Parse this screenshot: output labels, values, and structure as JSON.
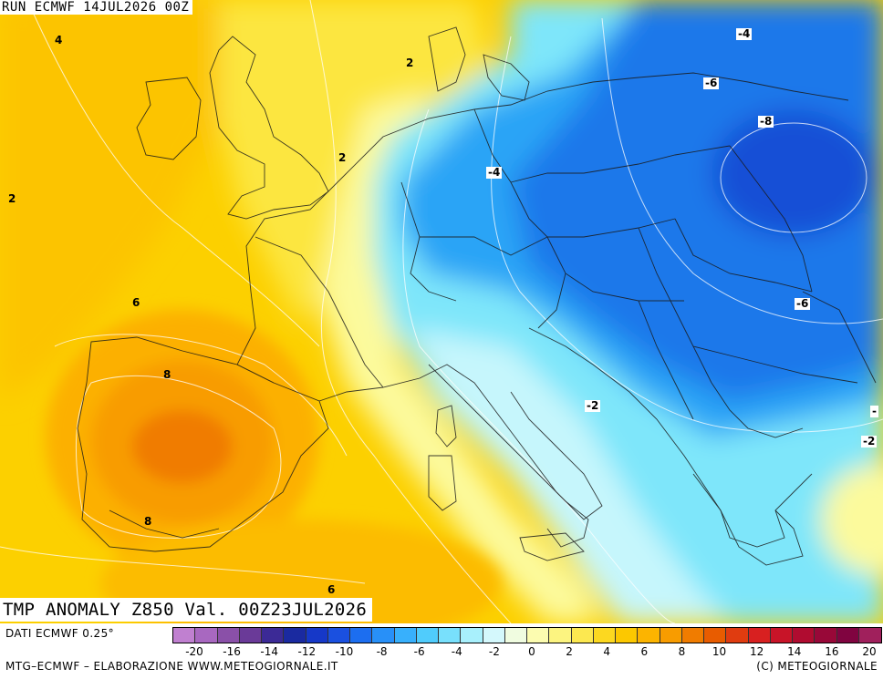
{
  "run_label": "RUN ECMWF 14JUL2026 00Z",
  "title": "TMP ANOMALY Z850 Val. 00Z23JUL2026",
  "source_label": "DATI ECMWF 0.25°",
  "credit": "MTG–ECMWF – ELABORAZIONE WWW.METEOGIORNALE.IT",
  "copyright": "(C) METEOGIORNALE",
  "contour_labels": [
    "4",
    "2",
    "2",
    "2",
    "6",
    "8",
    "8",
    "6",
    "-4",
    "-6",
    "-8",
    "-4",
    "-6",
    "-2",
    "-2",
    "-"
  ],
  "colorbar": {
    "ticks": [
      "-20",
      "-16",
      "-14",
      "-12",
      "-10",
      "-8",
      "-6",
      "-4",
      "-2",
      "0",
      "2",
      "4",
      "6",
      "8",
      "10",
      "12",
      "14",
      "16",
      "20"
    ],
    "colors": [
      "#c080d0",
      "#a868c0",
      "#8a50a8",
      "#6a3a98",
      "#3c2a96",
      "#1a2aa0",
      "#1638c8",
      "#1a50e0",
      "#1c6ef0",
      "#2890f8",
      "#38b0fc",
      "#50ccfc",
      "#78e0fc",
      "#a8f0fc",
      "#d4f8fc",
      "#f0fce0",
      "#fcfcb0",
      "#fcf480",
      "#fce850",
      "#fcd820",
      "#fcc800",
      "#fcb400",
      "#f89c00",
      "#f07c00",
      "#e85c00",
      "#e03c10",
      "#d82020",
      "#c81428",
      "#b00c30",
      "#980838",
      "#800440",
      "#a0205c"
    ]
  }
}
